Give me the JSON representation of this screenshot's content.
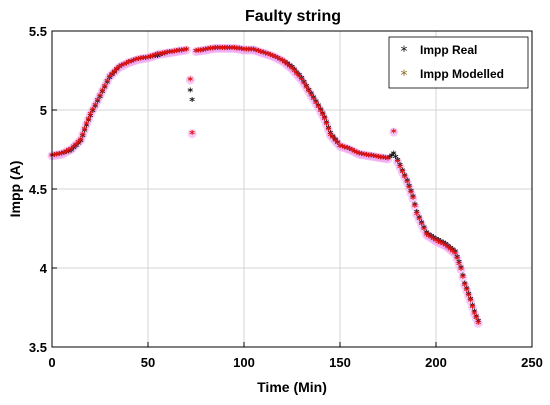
{
  "colors": {
    "real": "#111111",
    "modelled": "#e01010",
    "modelled_star": "#8a6b1a",
    "halo": "#f0a0f0",
    "grid": "#d6d6d6",
    "axis": "#000000"
  },
  "chart_data": {
    "type": "scatter",
    "title": "Faulty string",
    "xlabel": "Time (Min)",
    "ylabel": "Impp (A)",
    "xlim": [
      0,
      250
    ],
    "ylim": [
      3.5,
      5.5
    ],
    "xticks": [
      "0",
      "50",
      "100",
      "150",
      "200",
      "250"
    ],
    "yticks": [
      "3.5",
      "4",
      "4.5",
      "5",
      "5.5"
    ],
    "grid": true,
    "legend_position": "top-right",
    "series": [
      {
        "name": "Impp Real",
        "marker": "star",
        "x": [
          0,
          5,
          10,
          15,
          18,
          20,
          25,
          30,
          35,
          40,
          45,
          50,
          55,
          60,
          65,
          70,
          72,
          73,
          75,
          80,
          85,
          90,
          95,
          100,
          105,
          110,
          115,
          120,
          125,
          130,
          135,
          140,
          142,
          145,
          150,
          155,
          160,
          165,
          170,
          175,
          178,
          180,
          185,
          188,
          190,
          195,
          200,
          205,
          210,
          213,
          215,
          218,
          220,
          222
        ],
        "y": [
          4.71,
          4.72,
          4.74,
          4.8,
          4.9,
          4.96,
          5.08,
          5.2,
          5.27,
          5.3,
          5.32,
          5.33,
          5.34,
          5.36,
          5.37,
          5.38,
          5.12,
          5.06,
          5.37,
          5.38,
          5.39,
          5.39,
          5.39,
          5.38,
          5.38,
          5.36,
          5.34,
          5.31,
          5.27,
          5.2,
          5.1,
          5.0,
          4.95,
          4.85,
          4.77,
          4.75,
          4.72,
          4.71,
          4.7,
          4.69,
          4.72,
          4.68,
          4.55,
          4.45,
          4.35,
          4.22,
          4.18,
          4.15,
          4.1,
          4.0,
          3.9,
          3.8,
          3.72,
          3.66
        ]
      },
      {
        "name": "Impp Modelled",
        "marker": "star",
        "x": [
          0,
          5,
          10,
          15,
          18,
          20,
          25,
          30,
          35,
          40,
          45,
          50,
          55,
          60,
          65,
          70,
          72,
          73,
          75,
          80,
          85,
          90,
          95,
          100,
          105,
          110,
          115,
          120,
          125,
          130,
          135,
          140,
          142,
          145,
          150,
          155,
          160,
          165,
          170,
          175,
          178,
          180,
          185,
          188,
          190,
          195,
          200,
          205,
          210,
          213,
          215,
          218,
          220,
          222
        ],
        "y": [
          4.71,
          4.72,
          4.75,
          4.81,
          4.91,
          4.97,
          5.09,
          5.21,
          5.27,
          5.3,
          5.32,
          5.33,
          5.35,
          5.36,
          5.37,
          5.38,
          5.19,
          4.85,
          5.37,
          5.38,
          5.39,
          5.39,
          5.39,
          5.38,
          5.38,
          5.36,
          5.34,
          5.31,
          5.26,
          5.19,
          5.09,
          4.99,
          4.94,
          4.84,
          4.77,
          4.75,
          4.72,
          4.71,
          4.7,
          4.69,
          4.86,
          4.67,
          4.54,
          4.44,
          4.34,
          4.21,
          4.17,
          4.14,
          4.09,
          3.99,
          3.89,
          3.79,
          3.71,
          3.65
        ]
      }
    ]
  }
}
